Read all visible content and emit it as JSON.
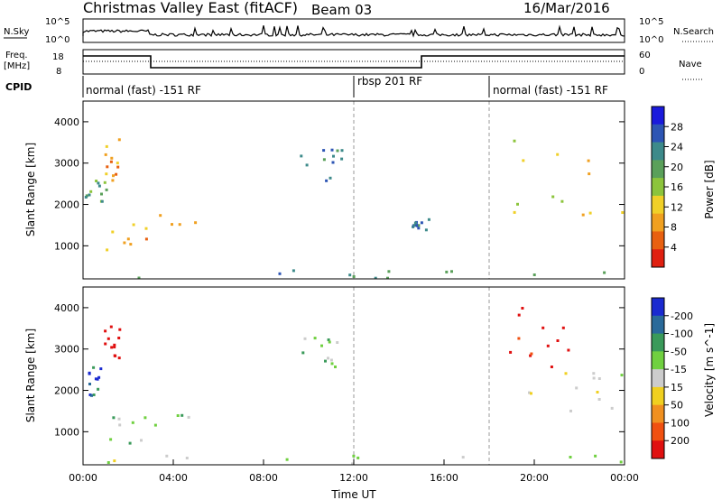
{
  "header": {
    "title": "Christmas Valley East (fitACF)",
    "beam": "Beam 03",
    "date": "16/Mar/2016"
  },
  "top_panels": {
    "nsky_label": "N.Sky",
    "nsky_ticks": [
      "10^5",
      "10^0"
    ],
    "nsearch_label": "N.Search",
    "nsearch_ticks": [
      "10^5",
      "10^0"
    ],
    "freq_label_1": "Freq.",
    "freq_label_2": "[MHz]",
    "freq_ticks": [
      "18",
      "8"
    ],
    "nave_label": "Nave",
    "nave_ticks": [
      "60",
      "0"
    ],
    "cpid_label": "CPID",
    "modes": [
      {
        "label": "normal (fast) -151 RF",
        "start_hour": 0
      },
      {
        "label": "rbsp 201 RF",
        "start_hour": 12
      },
      {
        "label": "normal (fast) -151 RF",
        "start_hour": 18
      }
    ]
  },
  "axes": {
    "y_label": "Slant Range [km]",
    "y_ticks": [
      "1000",
      "2000",
      "3000",
      "4000"
    ],
    "x_label": "Time UT",
    "x_ticks": [
      "00:00",
      "04:00",
      "08:00",
      "12:00",
      "16:00",
      "20:00",
      "00:00"
    ]
  },
  "colorbars": {
    "power": {
      "label": "Power [dB]",
      "ticks": [
        "4",
        "8",
        "12",
        "16",
        "20",
        "24",
        "28"
      ],
      "colors": [
        "#1a1adc",
        "#2d55b4",
        "#3d8a8a",
        "#5aa05a",
        "#8cc43c",
        "#f0d028",
        "#f0a020",
        "#e86010",
        "#e02010"
      ]
    },
    "velocity": {
      "label": "Velocity [m s^-1]",
      "ticks": [
        "200",
        "100",
        "50",
        "15",
        "-15",
        "-50",
        "-100",
        "-200"
      ],
      "colors": [
        "#1a2ad0",
        "#2a6a9a",
        "#3a9a5a",
        "#70d040",
        "#cccccc",
        "#f0d020",
        "#f09020",
        "#f05010",
        "#e01010"
      ]
    }
  },
  "chart_data": [
    {
      "type": "heatmap",
      "quantity": "Power",
      "units": "dB",
      "x_unit": "hour UT",
      "y_unit": "km",
      "xlim": [
        0,
        24
      ],
      "ylim": [
        200,
        4500
      ],
      "clim": [
        0,
        30
      ],
      "blobs": [
        {
          "hour_start": 0.0,
          "hour_end": 1.0,
          "range_start": 2100,
          "range_end": 2700,
          "value": 12
        },
        {
          "hour_start": 0.9,
          "hour_end": 1.6,
          "range_start": 2600,
          "range_end": 3600,
          "value": 22
        },
        {
          "hour_start": 1.0,
          "hour_end": 5.3,
          "range_start": 800,
          "range_end": 1900,
          "value": 20
        },
        {
          "hour_start": 9.5,
          "hour_end": 11.5,
          "range_start": 2600,
          "range_end": 3400,
          "value": 8
        },
        {
          "hour_start": 14.5,
          "hour_end": 15.3,
          "range_start": 1400,
          "range_end": 1700,
          "value": 8
        },
        {
          "hour_start": 18.9,
          "hour_end": 24.0,
          "range_start": 1500,
          "range_end": 3700,
          "value": 18
        },
        {
          "hour_start": 0.0,
          "hour_end": 24.0,
          "range_start": 250,
          "range_end": 450,
          "value": 10
        }
      ]
    },
    {
      "type": "heatmap",
      "quantity": "Velocity",
      "units": "m s^-1",
      "x_unit": "hour UT",
      "y_unit": "km",
      "xlim": [
        0,
        24
      ],
      "ylim": [
        200,
        4500
      ],
      "clim": [
        -200,
        200
      ],
      "blobs": [
        {
          "hour_start": 0.2,
          "hour_end": 0.8,
          "range_start": 1900,
          "range_end": 2700,
          "value": 150
        },
        {
          "hour_start": 0.9,
          "hour_end": 1.6,
          "range_start": 2800,
          "range_end": 3600,
          "value": -200
        },
        {
          "hour_start": 1.0,
          "hour_end": 5.3,
          "range_start": 700,
          "range_end": 1800,
          "value": 30
        },
        {
          "hour_start": 9.5,
          "hour_end": 11.5,
          "range_start": 2600,
          "range_end": 3400,
          "value": 30
        },
        {
          "hour_start": 18.6,
          "hour_end": 21.5,
          "range_start": 2600,
          "range_end": 4100,
          "value": -200
        },
        {
          "hour_start": 19.5,
          "hour_end": 24.0,
          "range_start": 1500,
          "range_end": 2500,
          "value": 0
        },
        {
          "hour_start": 0.0,
          "hour_end": 24.0,
          "range_start": 250,
          "range_end": 450,
          "value": 20
        }
      ]
    }
  ]
}
